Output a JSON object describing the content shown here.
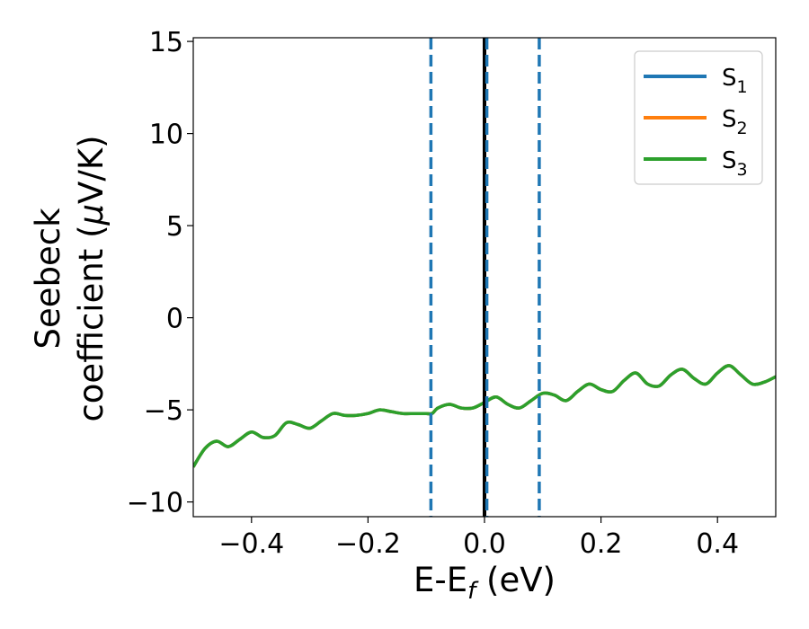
{
  "chart_data": {
    "type": "line",
    "xlabel": {
      "base": "E-E",
      "sub": "f",
      "rest": " (eV)"
    },
    "ylabel": {
      "line1": "Seebeck",
      "line2_pre": "coefficient  (",
      "mu": "μ",
      "line2_post": "V/K)"
    },
    "xlim": [
      -0.5,
      0.5
    ],
    "ylim": [
      -10.8,
      15.2
    ],
    "x_ticks": [
      -0.4,
      -0.2,
      0.0,
      0.2,
      0.4
    ],
    "x_tick_labels": [
      "−0.4",
      "−0.2",
      "0.0",
      "0.2",
      "0.4"
    ],
    "y_ticks": [
      -10,
      -5,
      0,
      5,
      10,
      15
    ],
    "y_tick_labels": [
      "−10",
      "−5",
      "0",
      "5",
      "10",
      "15"
    ],
    "legend_position": "top-right",
    "series": [
      {
        "name": "S",
        "sub": "1",
        "color": "#1f77b4"
      },
      {
        "name": "S",
        "sub": "2",
        "color": "#ff7f0e"
      },
      {
        "name": "S",
        "sub": "3",
        "color": "#2ca02c"
      }
    ],
    "curve_points": {
      "x": [
        -0.5,
        -0.48,
        -0.46,
        -0.44,
        -0.42,
        -0.4,
        -0.38,
        -0.36,
        -0.34,
        -0.32,
        -0.3,
        -0.28,
        -0.26,
        -0.24,
        -0.22,
        -0.2,
        -0.18,
        -0.16,
        -0.14,
        -0.12,
        -0.1,
        -0.09,
        -0.08,
        -0.06,
        -0.04,
        -0.02,
        0.0,
        0.02,
        0.04,
        0.06,
        0.08,
        0.1,
        0.12,
        0.14,
        0.16,
        0.18,
        0.2,
        0.22,
        0.24,
        0.26,
        0.28,
        0.3,
        0.32,
        0.34,
        0.36,
        0.38,
        0.4,
        0.42,
        0.44,
        0.46,
        0.48,
        0.5
      ],
      "y": [
        -8.1,
        -7.1,
        -6.7,
        -7.0,
        -6.6,
        -6.2,
        -6.5,
        -6.4,
        -5.7,
        -5.8,
        -6.0,
        -5.6,
        -5.2,
        -5.3,
        -5.3,
        -5.2,
        -5.0,
        -5.1,
        -5.2,
        -5.2,
        -5.2,
        -5.2,
        -4.9,
        -4.7,
        -4.9,
        -4.9,
        -4.6,
        -4.3,
        -4.7,
        -4.9,
        -4.5,
        -4.1,
        -4.2,
        -4.5,
        -4.0,
        -3.6,
        -3.9,
        -4.0,
        -3.4,
        -3.0,
        -3.6,
        -3.7,
        -3.1,
        -2.8,
        -3.3,
        -3.6,
        -3.0,
        -2.6,
        -3.1,
        -3.6,
        -3.5,
        -3.2
      ]
    },
    "vertical_lines": [
      {
        "x": -0.092,
        "style": "dashed",
        "color": "#1f77b4"
      },
      {
        "x": 0.0,
        "style": "solid",
        "color": "#000000"
      },
      {
        "x": 0.004,
        "style": "dashed",
        "color": "#1f77b4"
      },
      {
        "x": 0.094,
        "style": "dashed",
        "color": "#1f77b4"
      }
    ]
  }
}
